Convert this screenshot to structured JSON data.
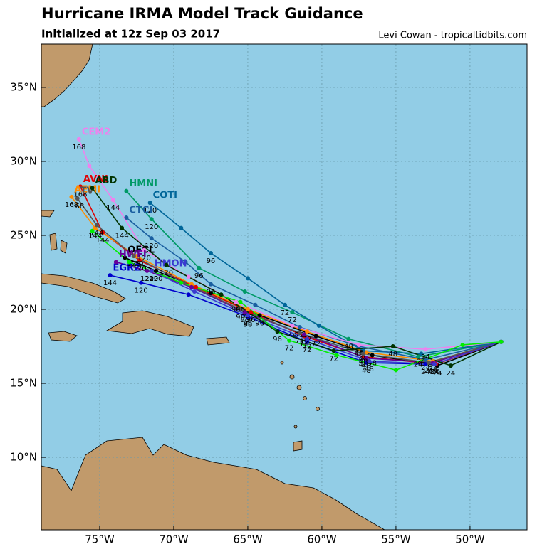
{
  "header": {
    "title": "Hurricane IRMA Model Track Guidance",
    "subtitle": "Initialized at 12z Sep 03 2017",
    "credit": "Levi Cowan - tropicaltidbits.com"
  },
  "map": {
    "xlim": [
      -78.94,
      -46.15
    ],
    "ylim": [
      5.1,
      37.93
    ],
    "xticks": [
      {
        "value": -75,
        "label": "75°W"
      },
      {
        "value": -70,
        "label": "70°W"
      },
      {
        "value": -65,
        "label": "65°W"
      },
      {
        "value": -60,
        "label": "60°W"
      },
      {
        "value": -55,
        "label": "55°W"
      },
      {
        "value": -50,
        "label": "50°W"
      }
    ],
    "yticks": [
      {
        "value": 10,
        "label": "10°N"
      },
      {
        "value": 15,
        "label": "15°N"
      },
      {
        "value": 20,
        "label": "20°N"
      },
      {
        "value": 25,
        "label": "25°N"
      },
      {
        "value": 30,
        "label": "30°N"
      },
      {
        "value": 35,
        "label": "35°N"
      }
    ],
    "grid": true,
    "tracks": [
      {
        "name": "OFCL",
        "color": "#000000",
        "lon": [
          -47.9,
          -52.2,
          -56.6,
          -60.4,
          -64.2,
          -67.5,
          -71.2,
          -73.3
        ],
        "lat": [
          17.8,
          16.2,
          16.9,
          18.2,
          19.6,
          21.1,
          22.6,
          23.5
        ],
        "hours": [
          null,
          "24",
          "48",
          "72",
          "96",
          null,
          "120",
          null
        ]
      },
      {
        "name": "AVNI",
        "color": "#e00000",
        "lon": [
          -47.9,
          -52.3,
          -57.2,
          -61.2,
          -64.8,
          -68.5,
          -72.3,
          -74.8,
          -76.3
        ],
        "lat": [
          17.8,
          16.3,
          16.8,
          18.2,
          19.8,
          21.5,
          23.3,
          25.2,
          28.3
        ],
        "hours": [
          null,
          "24",
          "48",
          "72",
          "96",
          null,
          "120",
          "144",
          "168"
        ]
      },
      {
        "name": "AEMI",
        "color": "#ff8c00",
        "lon": [
          -47.9,
          -52.5,
          -57.0,
          -61.0,
          -65.0,
          -68.8,
          -72.5,
          -75.3,
          -76.9
        ],
        "lat": [
          17.8,
          16.5,
          17.1,
          18.5,
          20.0,
          21.7,
          23.6,
          25.5,
          27.6
        ],
        "hours": [
          null,
          "24",
          "48",
          "72",
          "96",
          null,
          "120",
          "144",
          "168"
        ]
      },
      {
        "name": "HMNI",
        "color": "#009966",
        "lon": [
          -47.9,
          -53.5,
          -58.2,
          -62.0,
          -65.2,
          -68.3,
          -71.5,
          -73.2
        ],
        "lat": [
          17.8,
          16.8,
          18.0,
          19.8,
          21.2,
          22.8,
          26.1,
          28.0
        ],
        "hours": [
          null,
          "24",
          "48",
          "72",
          null,
          "96",
          "120",
          null
        ]
      },
      {
        "name": "COTI",
        "color": "#006699",
        "lon": [
          -47.9,
          -53.3,
          -57.2,
          -60.2,
          -62.5,
          -65.0,
          -67.5,
          -69.5,
          -71.6
        ],
        "lat": [
          17.8,
          17.0,
          17.2,
          18.9,
          20.3,
          22.1,
          23.8,
          25.5,
          27.2
        ],
        "hours": [
          null,
          "24",
          "48",
          null,
          "72",
          null,
          "96",
          null,
          "120"
        ]
      },
      {
        "name": "CTCI",
        "color": "#1a5fa0",
        "lon": [
          -47.9,
          -53.0,
          -57.5,
          -61.5,
          -64.5,
          -67.5,
          -69.2,
          -71.5,
          -73.2
        ],
        "lat": [
          17.8,
          16.6,
          17.5,
          18.8,
          20.3,
          21.7,
          23.2,
          24.8,
          26.2
        ],
        "hours": [
          null,
          "24",
          "48",
          "72",
          null,
          "96",
          null,
          "120",
          null
        ]
      },
      {
        "name": "CEM2",
        "color": "#ee82ee",
        "lon": [
          -47.9,
          -53.0,
          -57.5,
          -62.0,
          -65.8,
          -69.0,
          -72.0,
          -74.1,
          -75.7,
          -76.4
        ],
        "lat": [
          17.8,
          17.3,
          17.6,
          18.9,
          20.5,
          22.2,
          24.0,
          27.4,
          29.7,
          31.5
        ],
        "hours": [
          null,
          "24",
          "48",
          "72",
          "96",
          null,
          "120",
          "144",
          null,
          "168"
        ]
      },
      {
        "name": "EGR2",
        "color": "#0000cc",
        "lon": [
          -47.9,
          -53.0,
          -57.0,
          -61.0,
          -65.0,
          -69.0,
          -72.2,
          -74.3
        ],
        "lat": [
          17.8,
          16.3,
          16.4,
          17.8,
          19.5,
          21.0,
          21.8,
          22.3
        ],
        "hours": [
          null,
          "24",
          "48",
          "72",
          "96",
          null,
          "120",
          "144"
        ]
      },
      {
        "name": "HWFI",
        "color": "#660099",
        "lon": [
          -47.9,
          -52.5,
          -57.0,
          -61.2,
          -65.2,
          -68.8,
          -71.8,
          -73.9
        ],
        "lat": [
          17.8,
          16.4,
          16.7,
          18.3,
          19.8,
          21.5,
          22.6,
          23.2
        ],
        "hours": [
          null,
          "24",
          "48",
          "72",
          "96",
          null,
          "120",
          null
        ]
      },
      {
        "name": "TV",
        "color": "#555555",
        "lon": [
          -47.9,
          -52.8,
          -57.2,
          -61.5,
          -65.5,
          -69.3,
          -72.7,
          -75.2,
          -76.5
        ],
        "lat": [
          17.8,
          16.4,
          17.0,
          18.4,
          20.0,
          21.8,
          23.6,
          25.7,
          27.5
        ],
        "hours": [
          null,
          "24",
          "48",
          "72",
          "96",
          null,
          "120",
          "144",
          "168"
        ]
      },
      {
        "name": "HMON",
        "color": "#3a3ad0",
        "lon": [
          -47.9,
          -52.4,
          -56.8,
          -61.0,
          -65.0,
          -68.6,
          -71.5
        ],
        "lat": [
          17.8,
          16.3,
          16.5,
          18.0,
          19.6,
          21.2,
          22.6
        ],
        "hours": [
          null,
          "24",
          "48",
          "72",
          "96",
          null,
          "120"
        ]
      },
      {
        "name": "ABD",
        "color": "#003300",
        "lon": [
          -47.9,
          -51.3,
          -55.2,
          -59.2,
          -63.0,
          -66.8,
          -70.5,
          -73.5,
          -75.5
        ],
        "lat": [
          17.8,
          16.2,
          17.5,
          17.2,
          18.5,
          21.0,
          23.0,
          25.5,
          28.2
        ],
        "hours": [
          null,
          "24",
          "48",
          "72",
          "96",
          null,
          "120",
          "144",
          null
        ]
      },
      {
        "color": "#00ee00",
        "lon": [
          -47.9,
          -50.5,
          -55.0,
          -59.0,
          -62.2,
          -65.5,
          -69.5,
          -73.0,
          -75.5
        ],
        "lat": [
          17.8,
          17.6,
          15.9,
          16.9,
          17.9,
          20.5,
          21.8,
          23.2,
          25.3
        ],
        "hours": [
          null,
          null,
          null,
          null,
          "72",
          "96",
          null,
          null,
          null
        ]
      }
    ]
  }
}
